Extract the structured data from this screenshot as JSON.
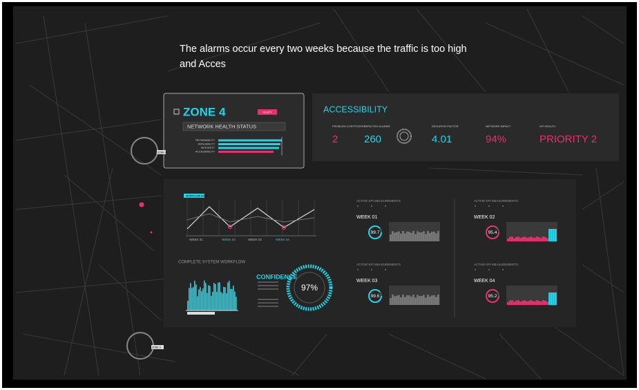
{
  "headline": "The alarms occur every two weeks because the traffic is too high and Acces",
  "map_markers": [
    "ZONE 4",
    "ZONE 3"
  ],
  "zone_card": {
    "title": "ZONE 4",
    "badge": "ALERT",
    "status": "NETWORK HEALTH STATUS",
    "metrics": [
      "RETAINABILITY",
      "AVAILABILITY",
      "INTEGRITY",
      "ACCESSIBILITY"
    ]
  },
  "accessibility": {
    "title": "ACCESSIBILITY",
    "metrics": [
      {
        "label": "PROBLEM COEFFICIENT",
        "value": "2"
      },
      {
        "label": "IMPACTED ALARMS",
        "value": "260"
      },
      {
        "label": "DEVIATION FACTOR",
        "value": "4.01"
      },
      {
        "label": "NETWORK IMPACT",
        "value": "94%"
      },
      {
        "label": "KPI HEALTH",
        "value": "PRIORITY 2"
      }
    ]
  },
  "workflow": {
    "badge": "WORKFLOW DATA",
    "weeks": [
      "WEEK 01",
      "WEEK 02",
      "WEEK 03",
      "WEEK 04"
    ],
    "system_title": "COMPLETE SYSTEM WORKFLOW",
    "confidence_label": "CONFIDENCE",
    "confidence_value": "97%"
  },
  "kpi_panels": [
    {
      "title": "ACTIVE KPI MEASUREMENTS",
      "week": "WEEK 01",
      "score": "99.7"
    },
    {
      "title": "ACTIVE KPI MEASUREMENTS",
      "week": "WEEK 02",
      "score": "95.4"
    },
    {
      "title": "ACTIVE KPI MEASUREMENTS",
      "week": "WEEK 03",
      "score": "99.6"
    },
    {
      "title": "ACTIVE KPI MEASUREMENTS",
      "week": "WEEK 04",
      "score": "95.2"
    }
  ]
}
